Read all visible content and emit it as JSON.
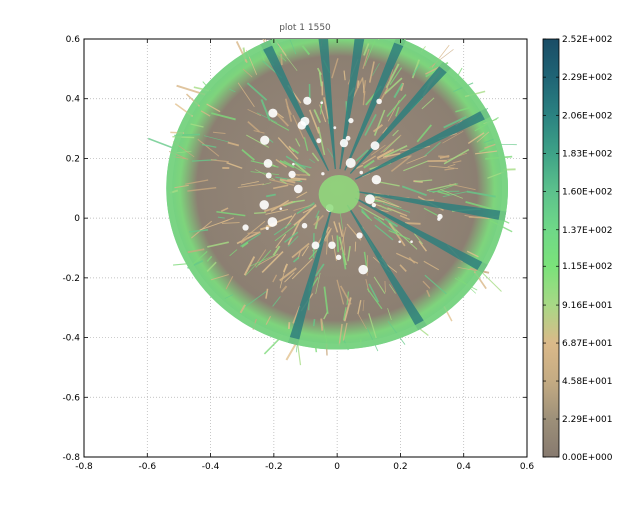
{
  "chart_data": {
    "type": "heatmap",
    "title": "plot 1 1550",
    "xlabel": "",
    "ylabel": "",
    "xlim": [
      -0.8,
      0.6
    ],
    "ylim": [
      -0.8,
      0.6
    ],
    "xticks": [
      -0.8,
      -0.6,
      -0.4,
      -0.2,
      0,
      0.2,
      0.4,
      0.6
    ],
    "yticks": [
      -0.8,
      -0.6,
      -0.4,
      -0.2,
      0,
      0.2,
      0.4,
      0.6
    ],
    "xtick_labels": [
      "-0.8",
      "-0.6",
      "-0.4",
      "-0.2",
      "0",
      "0.2",
      "0.4",
      "0.6"
    ],
    "ytick_labels": [
      "-0.8",
      "-0.6",
      "-0.4",
      "-0.2",
      "0",
      "0.2",
      "0.4",
      "0.6"
    ],
    "grid": true,
    "image": {
      "shape": "disc",
      "center": [
        0.0,
        0.1
      ],
      "radius": 0.54,
      "description_values": "hemispherical canopy intensity image"
    },
    "colorbar": {
      "min": 0,
      "max": 252,
      "tick_values": [
        252,
        229,
        206,
        183,
        160,
        137,
        115,
        91.6,
        68.7,
        45.8,
        22.9,
        0
      ],
      "tick_labels": [
        "2.52E+002",
        "2.29E+002",
        "2.06E+002",
        "1.83E+002",
        "1.60E+002",
        "1.37E+002",
        "1.15E+002",
        "9.16E+001",
        "6.87E+001",
        "4.58E+001",
        "2.29E+001",
        "0.00E+000"
      ],
      "colors": [
        "#877a6f",
        "#9d9079",
        "#c4ab83",
        "#dbb989",
        "#a8d886",
        "#7be27a",
        "#6fd888",
        "#5cc18c",
        "#3ea287",
        "#2b8281",
        "#1f6475",
        "#1a4d66"
      ]
    }
  }
}
